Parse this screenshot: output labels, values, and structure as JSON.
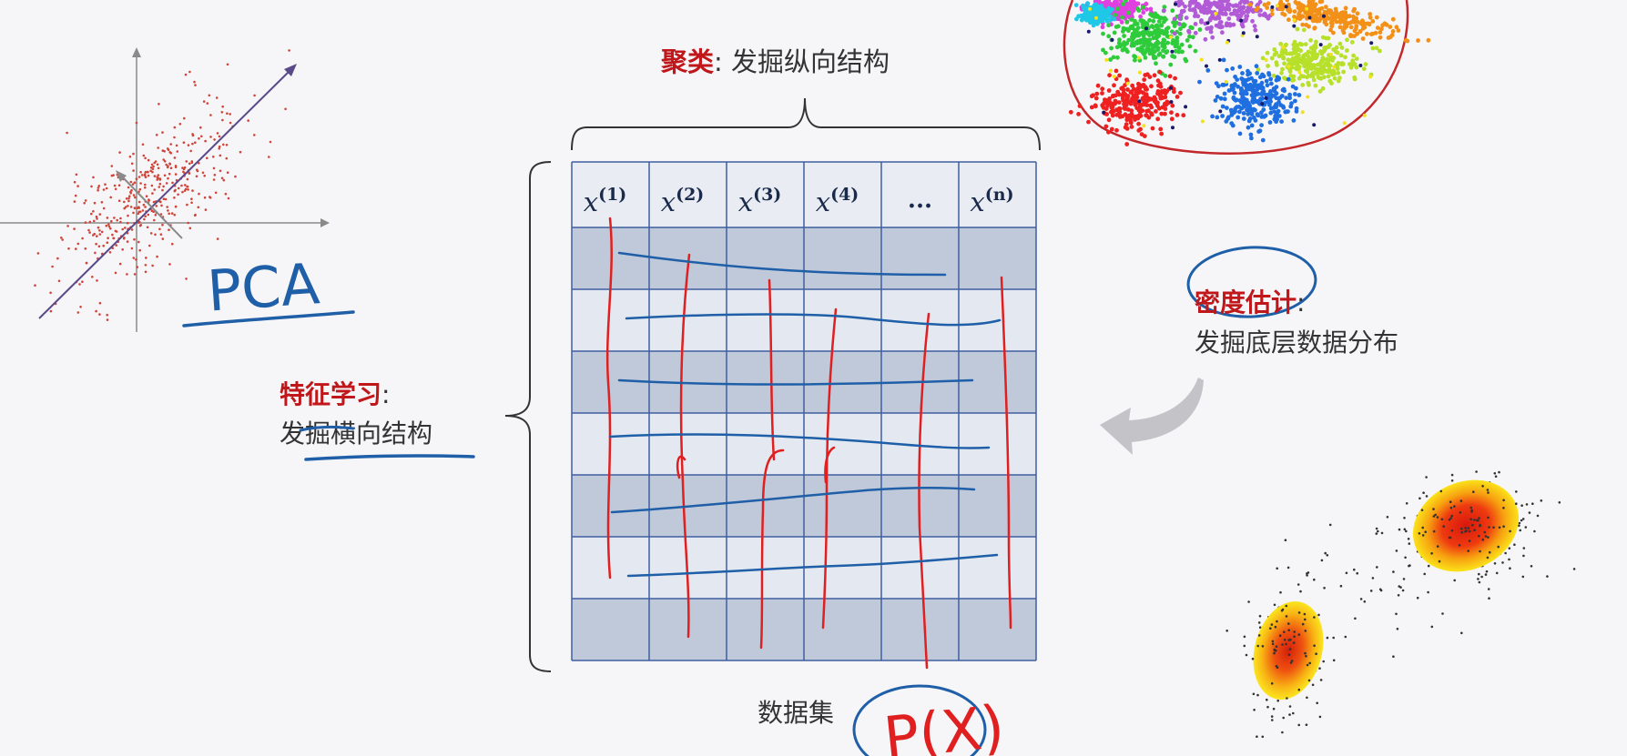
{
  "clustering": {
    "highlight": "聚类",
    "rest": ": 发掘纵向结构"
  },
  "feature_learning": {
    "highlight": "特征学习",
    "colon": ":",
    "line2": "发掘横向结构"
  },
  "density": {
    "highlight": "密度估计",
    "colon": ":",
    "line2": "发掘底层数据分布"
  },
  "dataset_label": "数据集",
  "handwriting": {
    "pca": "PCA",
    "px": "P(X)"
  },
  "table": {
    "headers": [
      {
        "base": "x",
        "sup": "(1)"
      },
      {
        "base": "x",
        "sup": "(2)"
      },
      {
        "base": "x",
        "sup": "(3)"
      },
      {
        "base": "x",
        "sup": "(4)"
      },
      {
        "base": "...",
        "sup": ""
      },
      {
        "base": "x",
        "sup": "(n)"
      }
    ],
    "body_rows": 7
  },
  "colors": {
    "highlight_red": "#c0171b",
    "text_dark": "#333333",
    "ink_blue": "#1f5fa8",
    "ink_red": "#e02020",
    "grid_line": "#3f5f9f",
    "header_fill": "#e9ecf3",
    "cell_dark": "#bfc9da",
    "cell_light": "#e4e9f1"
  }
}
